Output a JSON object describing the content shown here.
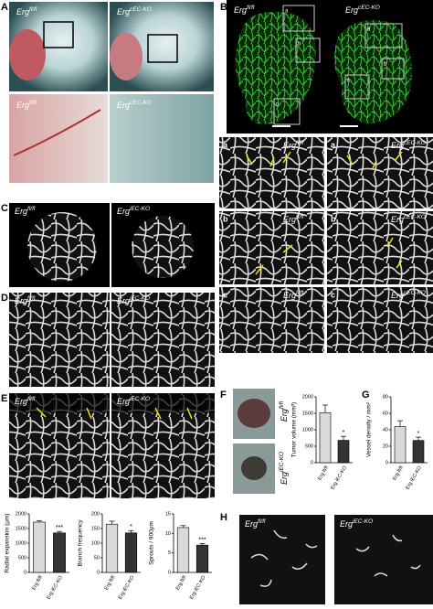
{
  "panels": {
    "A": {
      "label": "A",
      "genotypes": [
        {
          "text": "Erg",
          "sup": "fl/fl"
        },
        {
          "text": "Erg",
          "sup": "cEC-KO"
        },
        {
          "text": "Erg",
          "sup": "fl/fl"
        },
        {
          "text": "Erg",
          "sup": "cEC-KO"
        }
      ]
    },
    "B": {
      "label": "B",
      "genotypes": [
        {
          "text": "Erg",
          "sup": "fl/fl"
        },
        {
          "text": "Erg",
          "sup": "cEC-KO"
        }
      ],
      "boxes": [
        "a",
        "b",
        "c"
      ],
      "rows": [
        {
          "letter": "a",
          "genotypes": [
            {
              "text": "Erg",
              "sup": "fl/fl"
            },
            {
              "text": "Erg",
              "sup": "cEC-KO"
            }
          ]
        },
        {
          "letter": "b",
          "genotypes": [
            {
              "text": "Erg",
              "sup": "fl/fl"
            },
            {
              "text": "Erg",
              "sup": "cEC-KO"
            }
          ]
        },
        {
          "letter": "c",
          "genotypes": [
            {
              "text": "Erg",
              "sup": "fl/fl"
            },
            {
              "text": "Erg",
              "sup": "cEC-KO"
            }
          ]
        }
      ]
    },
    "C": {
      "label": "C",
      "genotypes": [
        {
          "text": "Erg",
          "sup": "fl/fl"
        },
        {
          "text": "Erg",
          "sup": "iEC-KO"
        }
      ]
    },
    "D": {
      "label": "D",
      "genotypes": [
        {
          "text": "Erg",
          "sup": "fl/fl"
        },
        {
          "text": "Erg",
          "sup": "iEC-KO"
        }
      ]
    },
    "E": {
      "label": "E",
      "genotypes": [
        {
          "text": "Erg",
          "sup": "fl/fl"
        },
        {
          "text": "Erg",
          "sup": "iEC-KO"
        }
      ]
    },
    "F": {
      "label": "F",
      "genotypes": [
        {
          "text": "Erg",
          "sup": "fl/fl"
        },
        {
          "text": "Erg",
          "sup": "iEC-KO"
        }
      ]
    },
    "G": {
      "label": "G"
    },
    "H": {
      "label": "H",
      "genotypes": [
        {
          "text": "Erg",
          "sup": "fl/fl"
        },
        {
          "text": "Erg",
          "sup": "iEC-KO"
        }
      ]
    }
  },
  "chart_data": [
    {
      "type": "bar",
      "y_label": "Radial expansion (µm)",
      "categories": [
        "Erg fl/fl",
        "Erg iEC-KO"
      ],
      "values": [
        1720,
        1350
      ],
      "errors": [
        40,
        50
      ],
      "significance": "***",
      "colors": [
        "#d9d9d9",
        "#333333"
      ],
      "ylim": [
        0,
        2000
      ],
      "yticks": [
        0,
        500,
        1000,
        1500,
        2000
      ]
    },
    {
      "type": "bar",
      "y_label": "Branch frequency",
      "categories": [
        "Erg fl/fl",
        "Erg iEC-KO"
      ],
      "values": [
        165,
        135
      ],
      "errors": [
        10,
        8
      ],
      "significance": "*",
      "colors": [
        "#d9d9d9",
        "#333333"
      ],
      "ylim": [
        0,
        200
      ],
      "yticks": [
        0,
        50,
        100,
        150,
        200
      ]
    },
    {
      "type": "bar",
      "y_label": "Sprouts / 900µm",
      "categories": [
        "Erg fl/fl",
        "Erg iEC-KO"
      ],
      "values": [
        11.5,
        7
      ],
      "errors": [
        0.5,
        0.4
      ],
      "significance": "***",
      "colors": [
        "#d9d9d9",
        "#333333"
      ],
      "ylim": [
        0,
        15
      ],
      "yticks": [
        0,
        5,
        10,
        15
      ]
    },
    {
      "type": "bar",
      "y_label": "Tumor volume (mm³)",
      "categories": [
        "Erg fl/fl",
        "Erg iEC-KO"
      ],
      "values": [
        1520,
        680
      ],
      "errors": [
        230,
        120
      ],
      "significance": "*",
      "colors": [
        "#d9d9d9",
        "#333333"
      ],
      "ylim": [
        0,
        2000
      ],
      "yticks": [
        0,
        500,
        1000,
        1500,
        2000
      ]
    },
    {
      "type": "bar",
      "y_label": "Vessel density / mm²",
      "categories": [
        "Erg fl/fl",
        "Erg iEC-KO"
      ],
      "values": [
        44,
        27
      ],
      "errors": [
        7,
        4
      ],
      "significance": "*",
      "colors": [
        "#d9d9d9",
        "#333333"
      ],
      "ylim": [
        0,
        80
      ],
      "yticks": [
        0,
        20,
        40,
        60,
        80
      ]
    }
  ]
}
